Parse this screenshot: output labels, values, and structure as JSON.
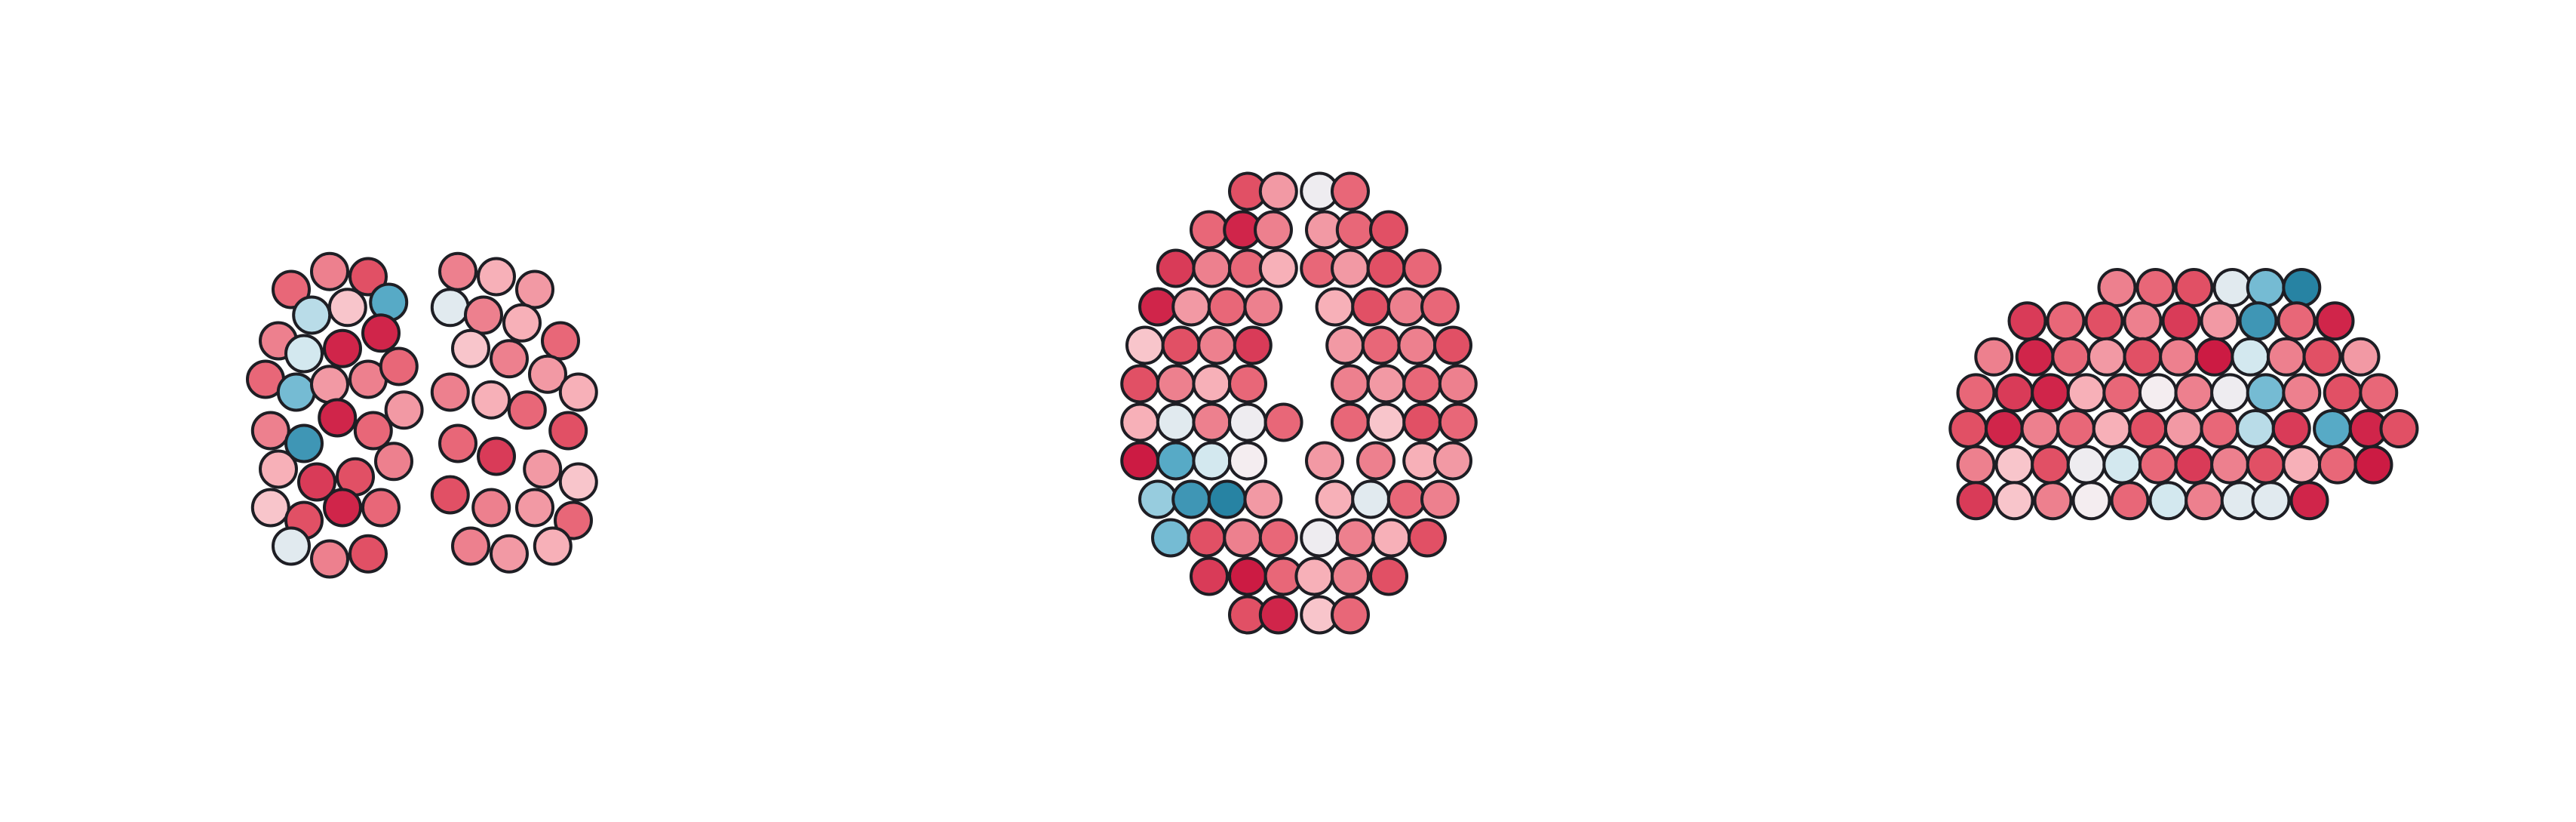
{
  "chart_data": [
    {
      "type": "scatter",
      "x": [
        -50,
        -35,
        -20,
        -42,
        -28,
        -12,
        -55,
        -45,
        -30,
        -15,
        -60,
        -48,
        -35,
        -20,
        -8,
        -58,
        -45,
        -32,
        -18,
        -6,
        -55,
        -40,
        -25,
        -10,
        -58,
        -45,
        -30,
        -15,
        -50,
        -35,
        -20,
        15,
        30,
        45,
        12,
        25,
        40,
        55,
        20,
        35,
        50,
        62,
        12,
        28,
        42,
        58,
        15,
        30,
        48,
        62,
        12,
        28,
        45,
        60,
        20,
        35,
        52
      ],
      "y": [
        55,
        62,
        60,
        45,
        48,
        50,
        35,
        30,
        32,
        38,
        20,
        15,
        18,
        20,
        25,
        0,
        -5,
        5,
        0,
        8,
        -15,
        -20,
        -18,
        -12,
        -30,
        -35,
        -30,
        -30,
        -45,
        -50,
        -48,
        62,
        60,
        55,
        48,
        45,
        42,
        35,
        32,
        28,
        22,
        15,
        15,
        12,
        8,
        0,
        -5,
        -10,
        -15,
        -20,
        -25,
        -30,
        -30,
        -35,
        -45,
        -48,
        -45
      ],
      "values": [
        0.6,
        0.5,
        0.7,
        -0.4,
        0.2,
        -0.7,
        0.5,
        -0.3,
        0.9,
        0.9,
        0.6,
        -0.6,
        0.4,
        0.5,
        0.6,
        0.5,
        -0.8,
        0.9,
        0.6,
        0.4,
        0.3,
        0.8,
        0.7,
        0.5,
        0.2,
        0.7,
        0.9,
        0.6,
        -0.2,
        0.5,
        0.7,
        0.5,
        0.3,
        0.4,
        -0.2,
        0.5,
        0.3,
        0.6,
        0.2,
        0.5,
        0.4,
        0.3,
        0.5,
        0.3,
        0.6,
        0.7,
        0.6,
        0.8,
        0.4,
        0.2,
        0.7,
        0.5,
        0.4,
        0.6,
        0.5,
        0.4,
        0.3
      ],
      "xlim": [
        -70,
        70
      ],
      "ylim": [
        -55,
        70
      ],
      "cmap": [
        "#0f6f92",
        "#5fb0cc",
        "#cfe7ef",
        "#fbeef0",
        "#f6a9b2",
        "#e4576a",
        "#c8103c"
      ],
      "clim": [
        -1,
        1
      ]
    },
    {
      "type": "scatter",
      "x": [
        -20,
        -8,
        8,
        20,
        -35,
        -22,
        -10,
        10,
        22,
        35,
        -48,
        -34,
        -20,
        -8,
        8,
        20,
        34,
        48,
        -55,
        -42,
        -28,
        -14,
        14,
        28,
        42,
        55,
        -60,
        -46,
        -32,
        -18,
        18,
        32,
        46,
        60,
        -62,
        -48,
        -34,
        -20,
        20,
        34,
        48,
        62,
        -62,
        -48,
        -34,
        -20,
        -6,
        20,
        34,
        48,
        62,
        -62,
        -48,
        -34,
        -20,
        10,
        30,
        48,
        60,
        -55,
        -42,
        -28,
        -14,
        14,
        28,
        42,
        55,
        -50,
        -36,
        -22,
        -8,
        8,
        22,
        36,
        50,
        -35,
        -20,
        -6,
        6,
        20,
        35,
        -20,
        -8,
        8,
        20
      ],
      "y": [
        65,
        65,
        65,
        65,
        50,
        50,
        50,
        50,
        50,
        50,
        35,
        35,
        35,
        35,
        35,
        35,
        35,
        35,
        20,
        20,
        20,
        20,
        20,
        20,
        20,
        20,
        5,
        5,
        5,
        5,
        5,
        5,
        5,
        5,
        -10,
        -10,
        -10,
        -10,
        -10,
        -10,
        -10,
        -10,
        -25,
        -25,
        -25,
        -25,
        -25,
        -25,
        -25,
        -25,
        -25,
        -40,
        -40,
        -40,
        -40,
        -40,
        -40,
        -40,
        -40,
        -55,
        -55,
        -55,
        -55,
        -55,
        -55,
        -55,
        -55,
        -70,
        -70,
        -70,
        -70,
        -70,
        -70,
        -70,
        -70,
        -85,
        -85,
        -85,
        -85,
        -85,
        -85,
        -100,
        -100,
        -100,
        -100
      ],
      "values": [
        0.7,
        0.4,
        -0.1,
        0.6,
        0.6,
        0.9,
        0.5,
        0.4,
        0.6,
        0.7,
        0.8,
        0.5,
        0.6,
        0.3,
        0.6,
        0.4,
        0.7,
        0.6,
        0.9,
        0.4,
        0.6,
        0.5,
        0.3,
        0.7,
        0.5,
        0.6,
        0.2,
        0.7,
        0.5,
        0.8,
        0.4,
        0.6,
        0.5,
        0.7,
        0.7,
        0.5,
        0.3,
        0.6,
        0.5,
        0.4,
        0.6,
        0.5,
        0.3,
        -0.2,
        0.5,
        -0.1,
        0.6,
        0.6,
        0.2,
        0.7,
        0.6,
        0.95,
        -0.7,
        -0.3,
        -0.05,
        0.4,
        0.5,
        0.3,
        0.4,
        -0.5,
        -0.8,
        -0.9,
        0.4,
        0.3,
        -0.2,
        0.6,
        0.5,
        -0.6,
        0.7,
        0.5,
        0.6,
        -0.1,
        0.5,
        0.3,
        0.7,
        0.8,
        0.95,
        0.6,
        0.3,
        0.5,
        0.7,
        0.7,
        0.9,
        0.2,
        0.6
      ],
      "xlim": [
        -70,
        70
      ],
      "ylim": [
        -110,
        75
      ],
      "cmap": [
        "#0f6f92",
        "#5fb0cc",
        "#cfe7ef",
        "#fbeef0",
        "#f6a9b2",
        "#e4576a",
        "#c8103c"
      ],
      "clim": [
        -1,
        1
      ]
    },
    {
      "type": "scatter",
      "x": [
        -40,
        -25,
        -10,
        5,
        18,
        32,
        -75,
        -60,
        -45,
        -30,
        -15,
        0,
        15,
        30,
        45,
        -88,
        -72,
        -58,
        -44,
        -30,
        -16,
        -2,
        12,
        26,
        40,
        55,
        -95,
        -80,
        -66,
        -52,
        -38,
        -24,
        -10,
        4,
        18,
        32,
        48,
        62,
        -98,
        -84,
        -70,
        -56,
        -42,
        -28,
        -14,
        0,
        14,
        28,
        44,
        58,
        70,
        -95,
        -80,
        -66,
        -52,
        -38,
        -24,
        -10,
        4,
        18,
        32,
        46,
        60,
        -95,
        -80,
        -65,
        -50,
        -35,
        -20,
        -6,
        8,
        20,
        35
      ],
      "y": [
        55,
        55,
        55,
        55,
        55,
        55,
        42,
        42,
        42,
        42,
        42,
        42,
        42,
        42,
        42,
        28,
        28,
        28,
        28,
        28,
        28,
        28,
        28,
        28,
        28,
        28,
        14,
        14,
        14,
        14,
        14,
        14,
        14,
        14,
        14,
        14,
        14,
        14,
        0,
        0,
        0,
        0,
        0,
        0,
        0,
        0,
        0,
        0,
        0,
        0,
        0,
        -14,
        -14,
        -14,
        -14,
        -14,
        -14,
        -14,
        -14,
        -14,
        -14,
        -14,
        -14,
        -28,
        -28,
        -28,
        -28,
        -28,
        -28,
        -28,
        -28,
        -28,
        -28
      ],
      "values": [
        0.5,
        0.6,
        0.7,
        -0.2,
        -0.6,
        -0.9,
        0.8,
        0.6,
        0.7,
        0.5,
        0.8,
        0.4,
        -0.8,
        0.6,
        0.9,
        0.5,
        0.9,
        0.6,
        0.4,
        0.7,
        0.5,
        0.95,
        -0.3,
        0.5,
        0.7,
        0.4,
        0.6,
        0.8,
        0.9,
        0.3,
        0.6,
        -0.05,
        0.5,
        -0.1,
        -0.6,
        0.5,
        0.7,
        0.6,
        0.7,
        0.9,
        0.5,
        0.6,
        0.3,
        0.7,
        0.4,
        0.6,
        -0.4,
        0.8,
        -0.7,
        0.9,
        0.7,
        0.5,
        0.2,
        0.7,
        -0.1,
        -0.3,
        0.6,
        0.8,
        0.5,
        0.7,
        0.3,
        0.6,
        0.95,
        0.8,
        0.2,
        0.5,
        -0.05,
        0.6,
        -0.3,
        0.5,
        -0.2,
        -0.2,
        0.9
      ],
      "xlim": [
        -105,
        80
      ],
      "ylim": [
        -45,
        65
      ],
      "cmap": [
        "#0f6f92",
        "#5fb0cc",
        "#cfe7ef",
        "#fbeef0",
        "#f6a9b2",
        "#e4576a",
        "#c8103c"
      ],
      "clim": [
        -1,
        1
      ]
    }
  ]
}
